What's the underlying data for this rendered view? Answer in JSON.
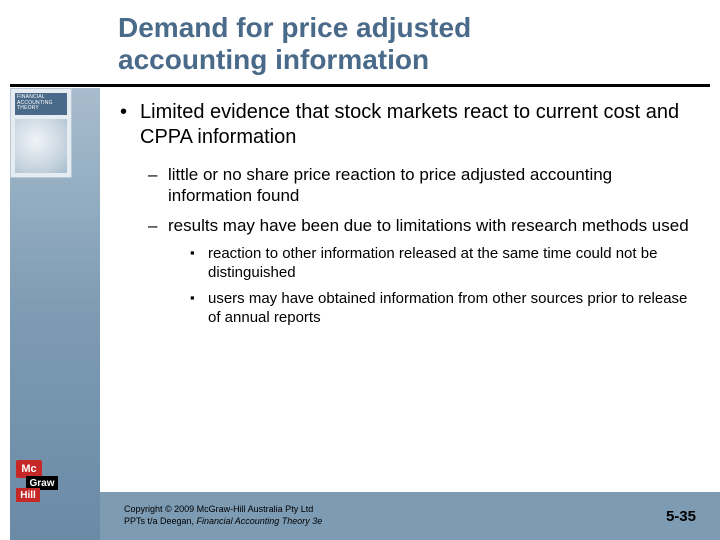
{
  "title_line1": "Demand for price adjusted",
  "title_line2": "accounting information",
  "book": {
    "cover_text": "FINANCIAL ACCOUNTING THEORY"
  },
  "bullets": {
    "l1": "Limited evidence that stock markets react to current cost and CPPA information",
    "l2a": "little or no share price reaction to price adjusted accounting information found",
    "l2b": "results may have been due to limitations with research methods used",
    "l3a": "reaction to other information released at the same time could not be distinguished",
    "l3b": "users may have obtained information from other sources prior to release of annual reports"
  },
  "logo": {
    "mc": "Mc",
    "graw": "Graw",
    "hill": "Hill"
  },
  "footer": {
    "copy_line1": "Copyright © 2009 McGraw-Hill Australia Pty Ltd",
    "copy_line2_prefix": "PPTs t/a Deegan, ",
    "copy_line2_italic": "Financial Accounting Theory 3e",
    "page": "5-35"
  },
  "colors": {
    "title": "#4a6a8a",
    "band_top": "#a8bdce",
    "band_bottom": "#6a8aa6",
    "footer_bg": "#7d9bb3",
    "logo_red": "#c62828"
  }
}
